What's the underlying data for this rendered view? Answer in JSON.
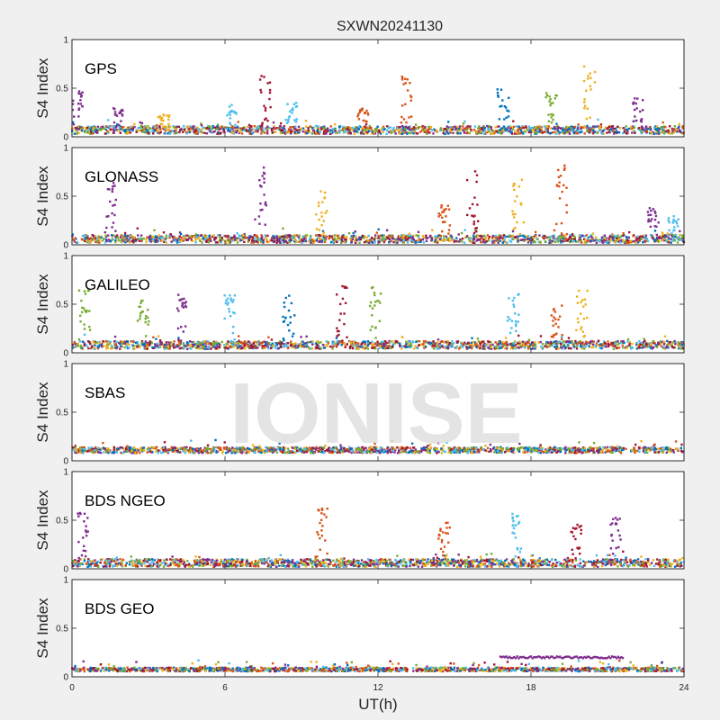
{
  "chart_data": {
    "type": "scatter",
    "title": "SXWN20241130",
    "watermark": "IONISE",
    "xlabel": "UT(h)",
    "xlim": [
      0,
      24
    ],
    "xticks": [
      0,
      6,
      12,
      18,
      24
    ],
    "ylabel": "S4 Index",
    "ylim": [
      0,
      1
    ],
    "yticks": [
      0,
      0.5,
      1
    ],
    "colors": [
      "#0072BD",
      "#D95319",
      "#EDB120",
      "#7E2F8E",
      "#77AC30",
      "#4DBEEE",
      "#A2142F"
    ],
    "panels": [
      {
        "name": "GPS",
        "baseline": 0.07,
        "noise": 0.04,
        "spikes": [
          [
            0.2,
            0.47,
            3
          ],
          [
            1.8,
            0.3,
            3
          ],
          [
            3.6,
            0.25,
            2
          ],
          [
            6.3,
            0.37,
            5
          ],
          [
            7.6,
            0.63,
            6
          ],
          [
            8.6,
            0.35,
            5
          ],
          [
            11.4,
            0.3,
            1
          ],
          [
            13.1,
            0.62,
            1
          ],
          [
            16.9,
            0.5,
            0
          ],
          [
            18.8,
            0.45,
            4
          ],
          [
            20.3,
            0.73,
            2
          ],
          [
            22.2,
            0.4,
            3
          ]
        ]
      },
      {
        "name": "GLONASS",
        "baseline": 0.06,
        "noise": 0.04,
        "spikes": [
          [
            1.5,
            0.65,
            3
          ],
          [
            7.4,
            0.8,
            3
          ],
          [
            9.8,
            0.55,
            2
          ],
          [
            14.6,
            0.42,
            1
          ],
          [
            15.7,
            0.76,
            6
          ],
          [
            17.5,
            0.7,
            2
          ],
          [
            19.2,
            0.82,
            1
          ],
          [
            22.8,
            0.4,
            3
          ],
          [
            23.6,
            0.3,
            5
          ]
        ]
      },
      {
        "name": "GALILEO",
        "baseline": 0.08,
        "noise": 0.04,
        "spikes": [
          [
            0.5,
            0.65,
            4
          ],
          [
            2.8,
            0.55,
            4
          ],
          [
            4.3,
            0.6,
            3
          ],
          [
            6.2,
            0.6,
            5
          ],
          [
            8.5,
            0.6,
            0
          ],
          [
            10.6,
            0.7,
            6
          ],
          [
            11.9,
            0.7,
            4
          ],
          [
            17.3,
            0.65,
            5
          ],
          [
            19.0,
            0.5,
            1
          ],
          [
            20.0,
            0.64,
            2
          ]
        ]
      },
      {
        "name": "SBAS",
        "baseline": 0.11,
        "noise": 0.03,
        "spikes": []
      },
      {
        "name": "BDS NGEO",
        "baseline": 0.06,
        "noise": 0.04,
        "spikes": [
          [
            0.4,
            0.6,
            3
          ],
          [
            9.8,
            0.62,
            1
          ],
          [
            14.6,
            0.48,
            1
          ],
          [
            17.4,
            0.57,
            5
          ],
          [
            19.8,
            0.49,
            6
          ],
          [
            21.3,
            0.55,
            3
          ]
        ]
      },
      {
        "name": "BDS GEO",
        "baseline": 0.075,
        "noise": 0.02,
        "spikes": [],
        "segment": {
          "x_start": 16.8,
          "x_end": 21.6,
          "value": 0.2
        }
      }
    ]
  }
}
